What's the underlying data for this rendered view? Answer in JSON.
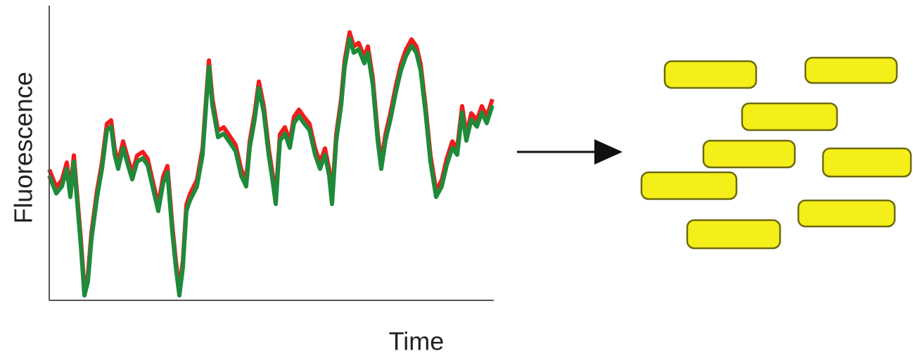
{
  "plot": {
    "y_label": "Fluorescence",
    "x_label": "Time"
  }
}
